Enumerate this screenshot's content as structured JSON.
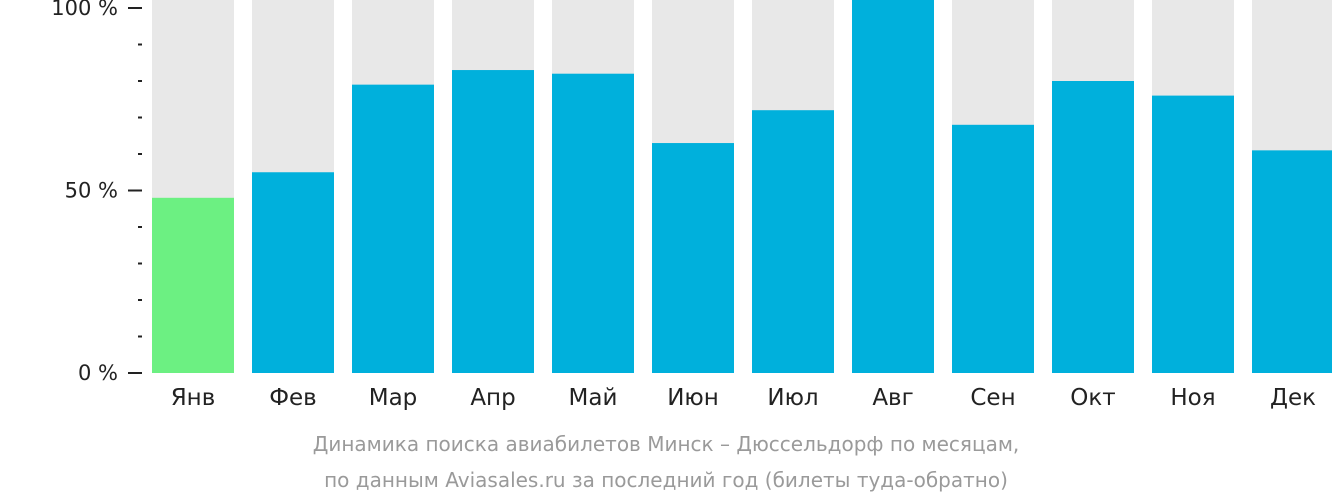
{
  "chart_data": {
    "type": "bar",
    "categories": [
      "Янв",
      "Фев",
      "Мар",
      "Апр",
      "Май",
      "Июн",
      "Июл",
      "Авг",
      "Сен",
      "Окт",
      "Ноя",
      "Дек"
    ],
    "values": [
      48,
      55,
      79,
      83,
      82,
      63,
      72,
      100,
      68,
      80,
      76,
      61
    ],
    "ylim": [
      0,
      100
    ],
    "y_ticks": [
      {
        "value": 100,
        "label": "100 %"
      },
      {
        "value": 50,
        "label": "50 %"
      },
      {
        "value": 0,
        "label": "0 %"
      }
    ],
    "minor_tick_step": 10,
    "highlight_index": 0,
    "grid": false,
    "legend": "none",
    "colors": {
      "bar": "#00b0dc",
      "highlight": "#6cf082",
      "background_bar": "#e8e8e8",
      "axis": "#222222"
    }
  },
  "caption": {
    "line1": "Динамика поиска авиабилетов Минск – Дюссельдорф по месяцам,",
    "line2": "по данным Aviasales.ru за последний год (билеты туда-обратно)"
  }
}
